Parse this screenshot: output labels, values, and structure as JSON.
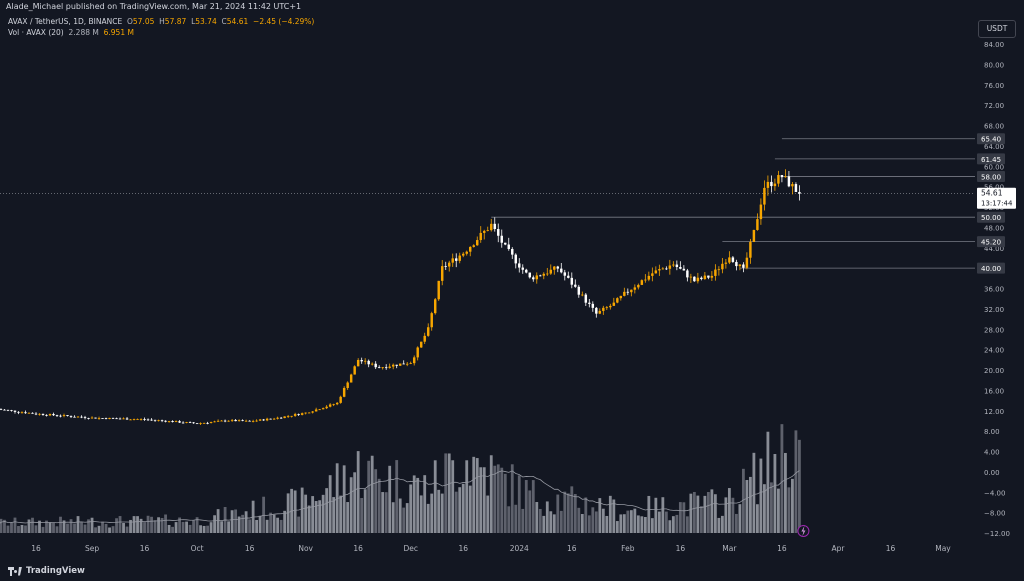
{
  "header": {
    "publisher_line": "Alade_Michael published on TradingView.com, Mar 21, 2024 11:42 UTC+1"
  },
  "legend": {
    "symbol": "AVAX / TetherUS, 1D, BINANCE",
    "open_label": "O",
    "open": "57.05",
    "high_label": "H",
    "high": "57.87",
    "low_label": "L",
    "low": "53.74",
    "close_label": "C",
    "close": "54.61",
    "change": "−2.45 (−4.29%)",
    "volume_label": "Vol · AVAX (20)",
    "volume_ma": "2.288 M",
    "volume": "6.951 M"
  },
  "currency_button": "USDT",
  "price_axis": {
    "ticks": [
      "84.00",
      "80.00",
      "76.00",
      "72.00",
      "68.00",
      "64.00",
      "60.00",
      "56.00",
      "52.00",
      "48.00",
      "44.00",
      "40.00",
      "36.00",
      "32.00",
      "28.00",
      "24.00",
      "20.00",
      "16.00",
      "12.00",
      "8.00",
      "4.00",
      "0.00",
      "−4.00",
      "−8.00",
      "−12.00"
    ],
    "last_price": "54.61",
    "countdown": "13:17:44"
  },
  "level_labels": [
    "65.40",
    "61.45",
    "58.00",
    "50.00",
    "45.20",
    "40.00"
  ],
  "time_axis": {
    "labels": [
      "16",
      "Sep",
      "16",
      "Oct",
      "16",
      "Nov",
      "16",
      "Dec",
      "16",
      "2024",
      "16",
      "Feb",
      "16",
      "Mar",
      "16",
      "Apr",
      "16",
      "May"
    ]
  },
  "branding": {
    "logo_text": "TradingView"
  },
  "colors": {
    "background": "#131722",
    "up_candle": "#f7a600",
    "down_candle": "#ffffff",
    "level_line": "#787b86",
    "volume_bar": "#9598a1"
  },
  "chart_data": {
    "type": "candlestick",
    "symbol": "AVAX / TetherUS",
    "interval": "1D",
    "ylim": [
      -12,
      86
    ],
    "horizontal_levels": [
      65.4,
      61.45,
      58.0,
      50.0,
      45.2,
      40.0
    ],
    "price_path": [
      {
        "x": "2023-08-05",
        "close": 12.3
      },
      {
        "x": "2023-08-16",
        "close": 11.4
      },
      {
        "x": "2023-09-01",
        "close": 10.6
      },
      {
        "x": "2023-09-16",
        "close": 10.3
      },
      {
        "x": "2023-10-01",
        "close": 9.5
      },
      {
        "x": "2023-10-10",
        "close": 10.1
      },
      {
        "x": "2023-10-16",
        "close": 9.9
      },
      {
        "x": "2023-10-24",
        "close": 10.6
      },
      {
        "x": "2023-11-01",
        "close": 11.6
      },
      {
        "x": "2023-11-10",
        "close": 13.5
      },
      {
        "x": "2023-11-16",
        "close": 22.0
      },
      {
        "x": "2023-11-22",
        "close": 20.5
      },
      {
        "x": "2023-12-01",
        "close": 21.5
      },
      {
        "x": "2023-12-06",
        "close": 28.0
      },
      {
        "x": "2023-12-10",
        "close": 40.0
      },
      {
        "x": "2023-12-16",
        "close": 43.0
      },
      {
        "x": "2023-12-24",
        "close": 48.5
      },
      {
        "x": "2023-12-28",
        "close": 44.0
      },
      {
        "x": "2024-01-04",
        "close": 38.0
      },
      {
        "x": "2024-01-12",
        "close": 40.0
      },
      {
        "x": "2024-01-16",
        "close": 37.0
      },
      {
        "x": "2024-01-23",
        "close": 31.0
      },
      {
        "x": "2024-01-28",
        "close": 33.0
      },
      {
        "x": "2024-02-01",
        "close": 35.5
      },
      {
        "x": "2024-02-08",
        "close": 39.0
      },
      {
        "x": "2024-02-14",
        "close": 40.8
      },
      {
        "x": "2024-02-20",
        "close": 37.5
      },
      {
        "x": "2024-02-25",
        "close": 38.5
      },
      {
        "x": "2024-03-01",
        "close": 42.5
      },
      {
        "x": "2024-03-05",
        "close": 39.5
      },
      {
        "x": "2024-03-08",
        "close": 47.0
      },
      {
        "x": "2024-03-11",
        "close": 56.0
      },
      {
        "x": "2024-03-16",
        "close": 58.0
      },
      {
        "x": "2024-03-21",
        "close": 54.61
      }
    ],
    "volume_path": [
      {
        "x": "2023-08-05",
        "v": 0.8
      },
      {
        "x": "2023-09-01",
        "v": 0.9
      },
      {
        "x": "2023-10-01",
        "v": 1.0
      },
      {
        "x": "2023-11-01",
        "v": 2.5
      },
      {
        "x": "2023-11-16",
        "v": 5.0
      },
      {
        "x": "2023-12-06",
        "v": 3.5
      },
      {
        "x": "2023-12-16",
        "v": 6.0
      },
      {
        "x": "2024-01-04",
        "v": 3.0
      },
      {
        "x": "2024-02-01",
        "v": 1.8
      },
      {
        "x": "2024-03-01",
        "v": 2.5
      },
      {
        "x": "2024-03-16",
        "v": 6.5
      },
      {
        "x": "2024-03-21",
        "v": 6.951
      }
    ]
  }
}
